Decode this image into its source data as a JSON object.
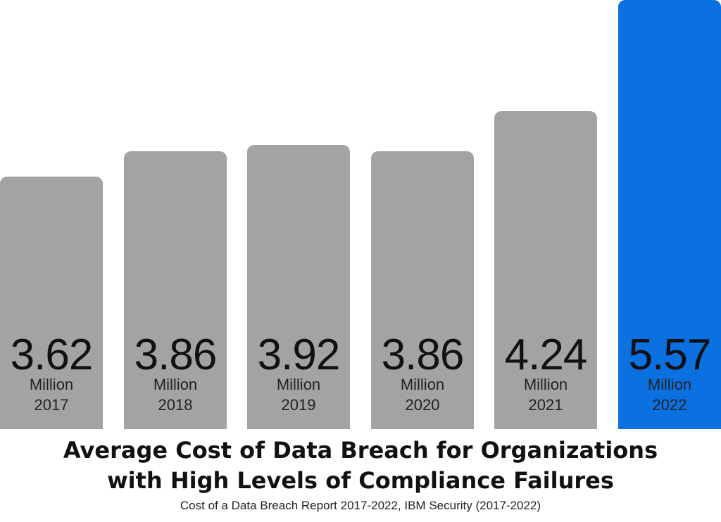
{
  "chart_data": {
    "type": "bar",
    "categories": [
      "2017",
      "2018",
      "2019",
      "2020",
      "2021",
      "2022"
    ],
    "values": [
      3.62,
      3.86,
      3.92,
      3.86,
      4.24,
      5.57
    ],
    "value_labels": [
      "3.62",
      "3.86",
      "3.92",
      "3.86",
      "4.24",
      "5.57"
    ],
    "unit_label": "Million",
    "title_lines": [
      "Average Cost of Data Breach for Organizations",
      "with High Levels of Compliance Failures"
    ],
    "subtitle": "Cost of a Data Breach Report 2017-2022, IBM Security (2017-2022)",
    "xlabel": "",
    "ylabel": "",
    "grid": false,
    "legend": "none",
    "colors": {
      "default_bar": "#a3a3a3",
      "highlight_bar": "#0b70e0"
    },
    "highlight_category": "2022"
  }
}
